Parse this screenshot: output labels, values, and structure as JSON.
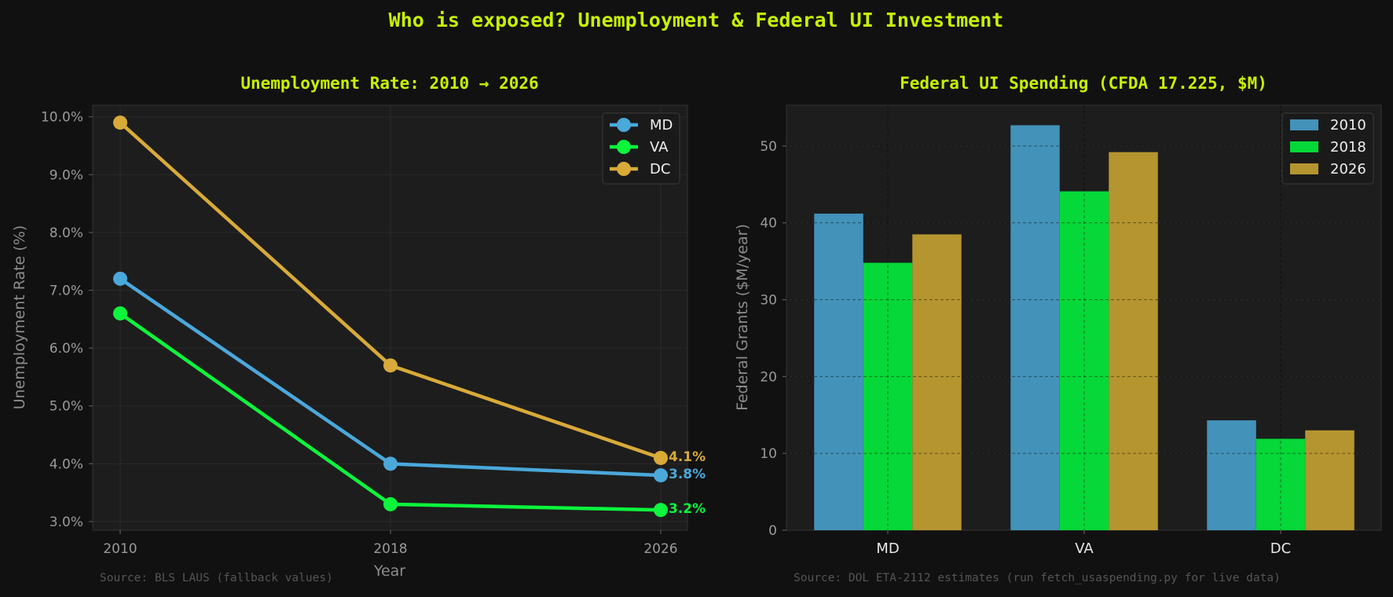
{
  "suptitle": "Who is exposed? Unemployment & Federal UI Investment",
  "colors": {
    "MD": "#4aa8db",
    "VA": "#0cf53c",
    "DC": "#d8aa38",
    "bar_2010": "#4392b9",
    "bar_2018": "#05d838",
    "bar_2026": "#b5952f",
    "title": "#c8f000",
    "background": "#111111",
    "plot_bg": "#1d1d1d"
  },
  "chart_data": [
    {
      "type": "line",
      "title": "Unemployment Rate: 2010 → 2026",
      "xlabel": "Year",
      "ylabel": "Unemployment Rate (%)",
      "x": [
        2010,
        2018,
        2026
      ],
      "x_tick_labels": [
        "2010",
        "2018",
        "2026"
      ],
      "ylim": [
        2.85,
        10.2
      ],
      "y_ticks": [
        3,
        4,
        5,
        6,
        7,
        8,
        9,
        10
      ],
      "y_tick_labels": [
        "3.0%",
        "4.0%",
        "5.0%",
        "6.0%",
        "7.0%",
        "8.0%",
        "9.0%",
        "10.0%"
      ],
      "grid": true,
      "legend_position": "top-right",
      "series": [
        {
          "name": "MD",
          "values": [
            7.2,
            4.0,
            3.8
          ],
          "end_label": "3.8%"
        },
        {
          "name": "VA",
          "values": [
            6.6,
            3.3,
            3.2
          ],
          "end_label": "3.2%"
        },
        {
          "name": "DC",
          "values": [
            9.9,
            5.7,
            4.1
          ],
          "end_label": "4.1%"
        }
      ],
      "source": "Source: BLS LAUS (fallback values)"
    },
    {
      "type": "bar",
      "title": "Federal UI Spending (CFDA 17.225, $M)",
      "xlabel": "",
      "ylabel": "Federal Grants ($M/year)",
      "categories": [
        "MD",
        "VA",
        "DC"
      ],
      "ylim": [
        0,
        55.3
      ],
      "y_ticks": [
        0,
        10,
        20,
        30,
        40,
        50
      ],
      "y_tick_labels": [
        "0",
        "10",
        "20",
        "30",
        "40",
        "50"
      ],
      "grid": true,
      "legend_position": "top-right",
      "series": [
        {
          "name": "2010",
          "values": [
            41.2,
            52.7,
            14.3
          ]
        },
        {
          "name": "2018",
          "values": [
            34.8,
            44.1,
            11.9
          ]
        },
        {
          "name": "2026",
          "values": [
            38.5,
            49.2,
            13.0
          ]
        }
      ],
      "source": "Source: DOL ETA-2112 estimates (run fetch_usaspending.py for live data)"
    }
  ]
}
